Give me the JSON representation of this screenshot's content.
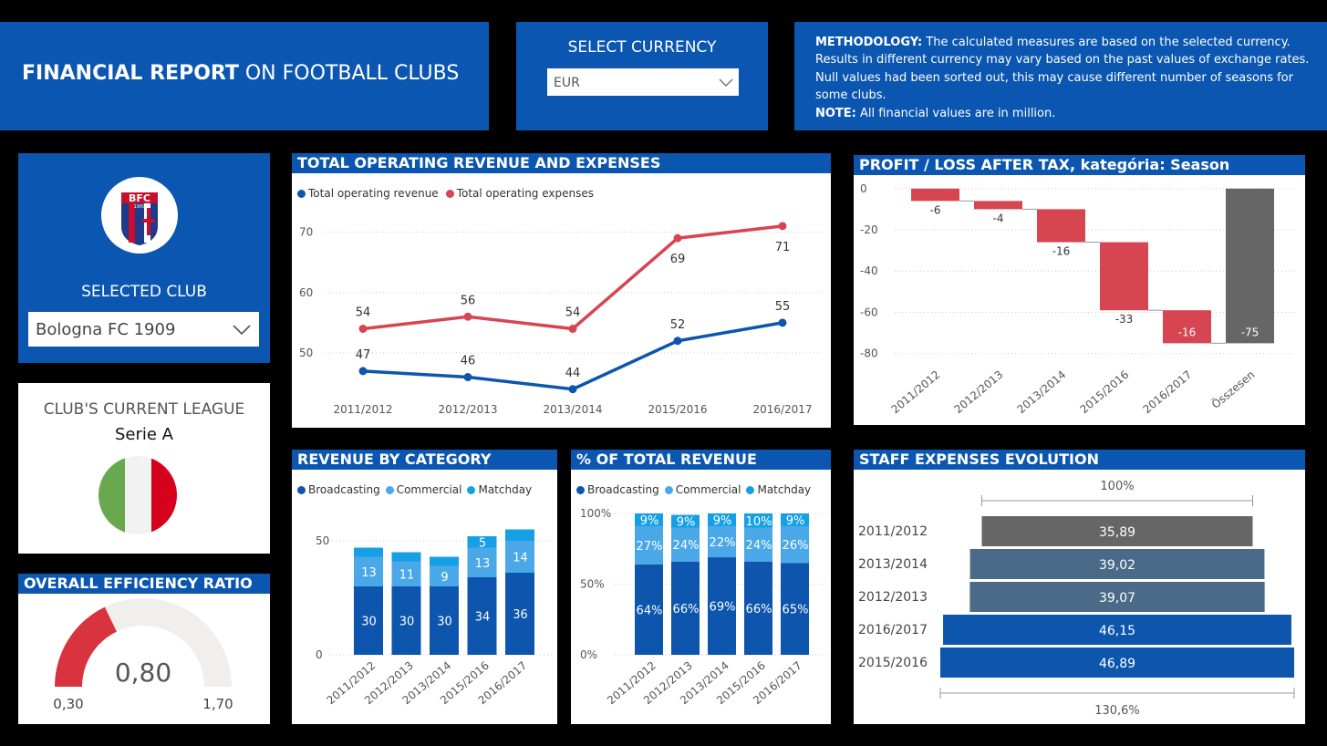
{
  "header": {
    "title_bold": "FINANCIAL REPORT",
    "title_rest": " ON FOOTBALL CLUBS"
  },
  "currency": {
    "label": "SELECT CURRENCY",
    "value": "EUR"
  },
  "methodology": {
    "bold1": "METHODOLOGY:",
    "text1": " The calculated measures are based on the selected currency. Results in different currency may vary based on the past values of exchange rates. Null values had been sorted out, this may cause different number of seasons for some clubs.",
    "bold2": "NOTE:",
    "text2": " All financial values are in million."
  },
  "club": {
    "logo_text": "BFC",
    "logo_year": "1909",
    "label": "SELECTED CLUB",
    "value": "Bologna FC 1909"
  },
  "league": {
    "label": "CLUB'S CURRENT LEAGUE",
    "value": "Serie A"
  },
  "colors": {
    "brand": "#0b56b0",
    "revenue": "#0d55ad",
    "expenses": "#d64550",
    "broadcasting": "#0d55ad",
    "commercial": "#4aa8e8",
    "matchday": "#15a0e6",
    "loss": "#d64550",
    "total": "#666666",
    "gauge": "#d8333f",
    "gauge_bg": "#f0efee",
    "staff_grey": "#666666",
    "staff_slate": "#4a6a87",
    "staff_blue": "#0d55ad"
  },
  "efficiency": {
    "title": "OVERALL EFFICIENCY RATIO",
    "min": 0.3,
    "max": 1.7,
    "value": 0.8,
    "value_label": "0,80",
    "min_label": "0,30",
    "max_label": "1,70"
  },
  "chart_data": [
    {
      "type": "line",
      "title": "TOTAL OPERATING REVENUE AND EXPENSES",
      "x": [
        "2011/2012",
        "2012/2013",
        "2013/2014",
        "2015/2016",
        "2016/2017"
      ],
      "ylim": [
        42,
        74
      ],
      "yticks": [
        50,
        60,
        70
      ],
      "series": [
        {
          "name": "Total operating revenue",
          "values": [
            47,
            46,
            44,
            52,
            55
          ],
          "labels": [
            "47",
            "46",
            "44",
            "52",
            "55"
          ]
        },
        {
          "name": "Total operating expenses",
          "values": [
            54,
            56,
            54,
            69,
            71
          ],
          "labels": [
            "54",
            "56",
            "54",
            "69",
            "71"
          ]
        }
      ]
    },
    {
      "type": "waterfall",
      "title": "PROFIT / LOSS AFTER TAX, kategória: Season",
      "categories": [
        "2011/2012",
        "2012/2013",
        "2013/2014",
        "2015/2016",
        "2016/2017",
        "Összesen"
      ],
      "values": [
        -6,
        -4,
        -16,
        -33,
        -16,
        -75
      ],
      "labels": [
        "-6",
        "-4",
        "-16",
        "-33",
        "-16",
        "-75"
      ],
      "ylim": [
        -85,
        3
      ],
      "yticks": [
        0,
        -20,
        -40,
        -60,
        -80
      ],
      "ytick_labels": [
        "0",
        "-20",
        "-40",
        "-60",
        "-80"
      ]
    },
    {
      "type": "bar",
      "stacked": true,
      "title": "REVENUE BY CATEGORY",
      "categories": [
        "2011/2012",
        "2012/2013",
        "2013/2014",
        "2015/2016",
        "2016/2017"
      ],
      "ylim": [
        0,
        58
      ],
      "yticks": [
        0,
        50
      ],
      "series": [
        {
          "name": "Broadcasting",
          "values": [
            30,
            30,
            30,
            34,
            36
          ],
          "labels": [
            "30",
            "30",
            "30",
            "34",
            "36"
          ]
        },
        {
          "name": "Commercial",
          "values": [
            13,
            11,
            9,
            13,
            14
          ],
          "labels": [
            "13",
            "11",
            "9",
            "13",
            "14"
          ]
        },
        {
          "name": "Matchday",
          "values": [
            4,
            4,
            4,
            5,
            5
          ],
          "labels": [
            "",
            "",
            "",
            "5",
            ""
          ]
        }
      ]
    },
    {
      "type": "bar",
      "stacked": true,
      "percent": true,
      "title": "% OF TOTAL REVENUE",
      "categories": [
        "2011/2012",
        "2012/2013",
        "2013/2014",
        "2015/2016",
        "2016/2017"
      ],
      "ylim": [
        0,
        100
      ],
      "yticks": [
        0,
        50,
        100
      ],
      "ytick_labels": [
        "0%",
        "50%",
        "100%"
      ],
      "series": [
        {
          "name": "Broadcasting",
          "values": [
            64,
            66,
            69,
            66,
            65
          ],
          "labels": [
            "64%",
            "66%",
            "69%",
            "66%",
            "65%"
          ]
        },
        {
          "name": "Commercial",
          "values": [
            27,
            24,
            22,
            24,
            26
          ],
          "labels": [
            "27%",
            "24%",
            "22%",
            "24%",
            "26%"
          ]
        },
        {
          "name": "Matchday",
          "values": [
            9,
            9,
            9,
            10,
            9
          ],
          "labels": [
            "9%",
            "9%",
            "9%",
            "10%",
            "9%"
          ]
        }
      ]
    },
    {
      "type": "funnel",
      "title": "STAFF EXPENSES EVOLUTION",
      "categories": [
        "2011/2012",
        "2013/2014",
        "2012/2013",
        "2016/2017",
        "2015/2016"
      ],
      "values": [
        35.89,
        39.02,
        39.07,
        46.15,
        46.89
      ],
      "labels": [
        "35,89",
        "39,02",
        "39,07",
        "46,15",
        "46,89"
      ],
      "top_label": "100%",
      "bottom_label": "130,6%"
    }
  ]
}
